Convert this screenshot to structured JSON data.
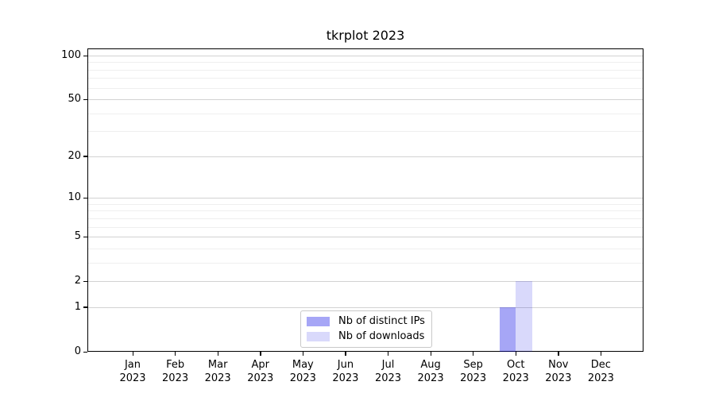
{
  "chart_data": {
    "type": "bar",
    "title": "tkrplot 2023",
    "categories": [
      "Jan",
      "Feb",
      "Mar",
      "Apr",
      "May",
      "Jun",
      "Jul",
      "Aug",
      "Sep",
      "Oct",
      "Nov",
      "Dec"
    ],
    "x_tick_year": "2023",
    "series": [
      {
        "name": "Nb of distinct IPs",
        "color": "rgba(0,0,230,0.35)",
        "values": [
          0,
          0,
          0,
          0,
          0,
          0,
          0,
          0,
          0,
          1,
          0,
          0
        ]
      },
      {
        "name": "Nb of downloads",
        "color": "rgba(0,0,230,0.15)",
        "values": [
          0,
          0,
          0,
          0,
          0,
          0,
          0,
          0,
          0,
          2,
          0,
          0
        ]
      }
    ],
    "xlabel": "",
    "ylabel": "",
    "y_scale": "log1p",
    "y_ticks": [
      0,
      1,
      2,
      5,
      10,
      20,
      50,
      100
    ],
    "y_minor_gridlines": [
      3,
      4,
      6,
      7,
      8,
      9,
      30,
      40,
      60,
      70,
      80,
      90
    ],
    "ylim": [
      0,
      112
    ],
    "grid": "horizontal major and minor",
    "legend_position": "lower center inside",
    "colors": {
      "background": "#ffffff",
      "axis": "#000000",
      "major_grid": "#d2d2d2",
      "minor_grid": "#efefef",
      "legend_border": "#c9c9c9"
    }
  }
}
